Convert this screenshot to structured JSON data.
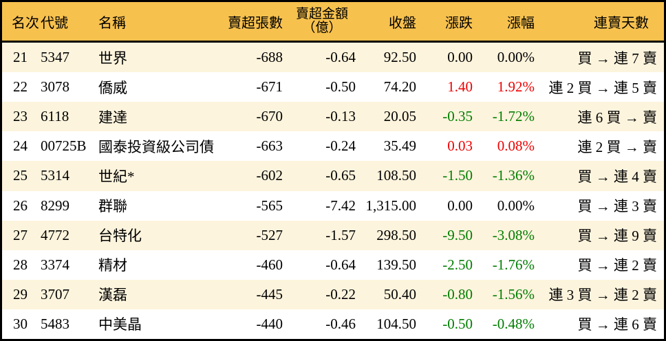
{
  "colors": {
    "header_bg": "#f7c14e",
    "row_alt_bg": "#fdf4dd",
    "up_red": "#ee0000",
    "down_green": "#007d00",
    "border_black": "#000000"
  },
  "table": {
    "columns": {
      "rank": "名次",
      "code": "代號",
      "name": "名稱",
      "volume": "賣超張數",
      "amount_line1": "賣超金額",
      "amount_line2": "（億）",
      "close": "收盤",
      "change": "漲跌",
      "change_pct": "漲幅",
      "streak": "連賣天數"
    },
    "rows": [
      {
        "rank": "21",
        "code": "5347",
        "name": "世界",
        "volume": "-688",
        "amount": "-0.64",
        "close": "92.50",
        "change": "0.00",
        "change_pct": "0.00%",
        "streak": "買 → 連 7 賣",
        "direction": "flat"
      },
      {
        "rank": "22",
        "code": "3078",
        "name": "僑威",
        "volume": "-671",
        "amount": "-0.50",
        "close": "74.20",
        "change": "1.40",
        "change_pct": "1.92%",
        "streak": "連 2 買 → 連 5 賣",
        "direction": "up"
      },
      {
        "rank": "23",
        "code": "6118",
        "name": "建達",
        "volume": "-670",
        "amount": "-0.13",
        "close": "20.05",
        "change": "-0.35",
        "change_pct": "-1.72%",
        "streak": "連 6 買 → 賣",
        "direction": "down"
      },
      {
        "rank": "24",
        "code": "00725B",
        "name": "國泰投資級公司債",
        "volume": "-663",
        "amount": "-0.24",
        "close": "35.49",
        "change": "0.03",
        "change_pct": "0.08%",
        "streak": "連 2 買 → 賣",
        "direction": "up"
      },
      {
        "rank": "25",
        "code": "5314",
        "name": "世紀*",
        "volume": "-602",
        "amount": "-0.65",
        "close": "108.50",
        "change": "-1.50",
        "change_pct": "-1.36%",
        "streak": "買 → 連 4 賣",
        "direction": "down"
      },
      {
        "rank": "26",
        "code": "8299",
        "name": "群聯",
        "volume": "-565",
        "amount": "-7.42",
        "close": "1,315.00",
        "change": "0.00",
        "change_pct": "0.00%",
        "streak": "買 → 連 3 賣",
        "direction": "flat"
      },
      {
        "rank": "27",
        "code": "4772",
        "name": "台特化",
        "volume": "-527",
        "amount": "-1.57",
        "close": "298.50",
        "change": "-9.50",
        "change_pct": "-3.08%",
        "streak": "買 → 連 9 賣",
        "direction": "down"
      },
      {
        "rank": "28",
        "code": "3374",
        "name": "精材",
        "volume": "-460",
        "amount": "-0.64",
        "close": "139.50",
        "change": "-2.50",
        "change_pct": "-1.76%",
        "streak": "買 → 連 2 賣",
        "direction": "down"
      },
      {
        "rank": "29",
        "code": "3707",
        "name": "漢磊",
        "volume": "-445",
        "amount": "-0.22",
        "close": "50.40",
        "change": "-0.80",
        "change_pct": "-1.56%",
        "streak": "連 3 買 → 連 2 賣",
        "direction": "down"
      },
      {
        "rank": "30",
        "code": "5483",
        "name": "中美晶",
        "volume": "-440",
        "amount": "-0.46",
        "close": "104.50",
        "change": "-0.50",
        "change_pct": "-0.48%",
        "streak": "買 → 連 6 賣",
        "direction": "down"
      }
    ]
  }
}
